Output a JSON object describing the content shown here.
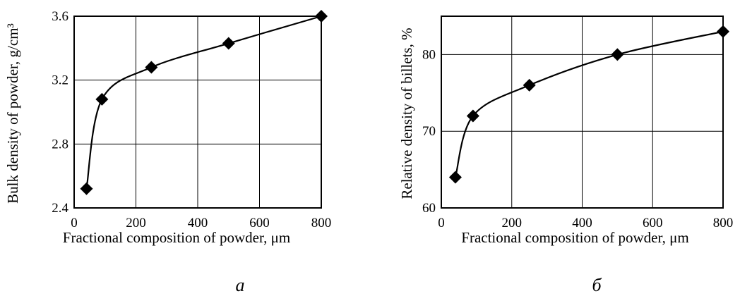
{
  "chart_data": [
    {
      "type": "line",
      "panel_label": "a",
      "xlabel": "Fractional composition of powder, μm",
      "ylabel": "Bulk density of powder, g/cm³",
      "xlim": [
        0,
        800
      ],
      "ylim": [
        2.4,
        3.6
      ],
      "x_ticks": [
        "0",
        "200",
        "400",
        "600",
        "800"
      ],
      "y_ticks": [
        "2.4",
        "2.8",
        "3.2",
        "3.6"
      ],
      "x_tick_values": [
        0,
        200,
        400,
        600,
        800
      ],
      "y_tick_values": [
        2.4,
        2.8,
        3.2,
        3.6
      ],
      "grid": true,
      "marker": "diamond",
      "series": [
        {
          "x": [
            40,
            90,
            250,
            500,
            800
          ],
          "y": [
            2.52,
            3.08,
            3.28,
            3.43,
            3.6
          ]
        }
      ]
    },
    {
      "type": "line",
      "panel_label": "б",
      "xlabel": "Fractional composition of powder, μm",
      "ylabel": "Relative density of billets, %",
      "xlim": [
        0,
        800
      ],
      "ylim": [
        60,
        85
      ],
      "x_ticks": [
        "0",
        "200",
        "400",
        "600",
        "800"
      ],
      "y_ticks": [
        "60",
        "70",
        "80"
      ],
      "x_tick_values": [
        0,
        200,
        400,
        600,
        800
      ],
      "y_tick_values": [
        60,
        70,
        80
      ],
      "grid": true,
      "marker": "diamond",
      "series": [
        {
          "x": [
            40,
            90,
            250,
            500,
            800
          ],
          "y": [
            64,
            72,
            76,
            80,
            83
          ]
        }
      ]
    }
  ]
}
